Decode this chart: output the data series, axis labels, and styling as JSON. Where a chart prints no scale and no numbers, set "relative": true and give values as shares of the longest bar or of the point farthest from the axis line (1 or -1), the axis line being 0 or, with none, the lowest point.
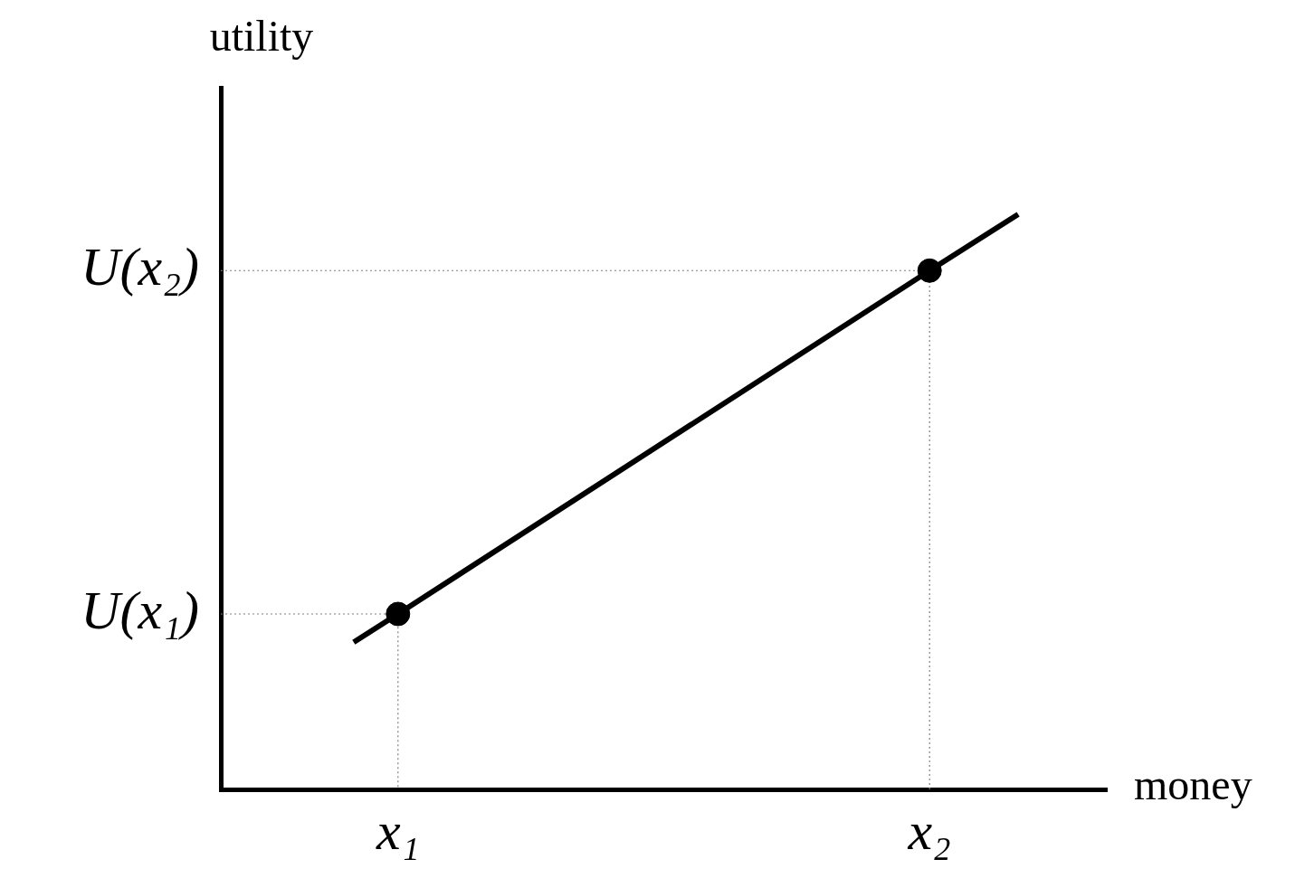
{
  "chart_data": {
    "type": "line",
    "relative": true,
    "xlabel": "money",
    "ylabel": "utility",
    "annotations": [
      "U(x₁)",
      "U(x₂)"
    ],
    "categories": [
      null,
      null,
      null,
      null,
      "x₁",
      null,
      null,
      null,
      null,
      null,
      null,
      null,
      null,
      null,
      null,
      null,
      "x₂",
      null,
      null,
      null,
      null
    ],
    "series": [
      {
        "color": "#000000",
        "values": [
          null,
          null,
          null,
          0.256,
          0.305,
          null,
          null,
          null,
          null,
          null,
          null,
          null,
          null,
          null,
          null,
          null,
          0.902,
          null,
          1,
          null,
          null
        ],
        "marker": "none",
        "line_style": "solid"
      },
      {
        "type": "scatter",
        "color": "#000000",
        "values": [
          null,
          null,
          null,
          null,
          0.305,
          null,
          null,
          null,
          null,
          null,
          null,
          null,
          null,
          null,
          null,
          null,
          0.902,
          null,
          null,
          null,
          null
        ],
        "marker": "circle"
      }
    ]
  }
}
